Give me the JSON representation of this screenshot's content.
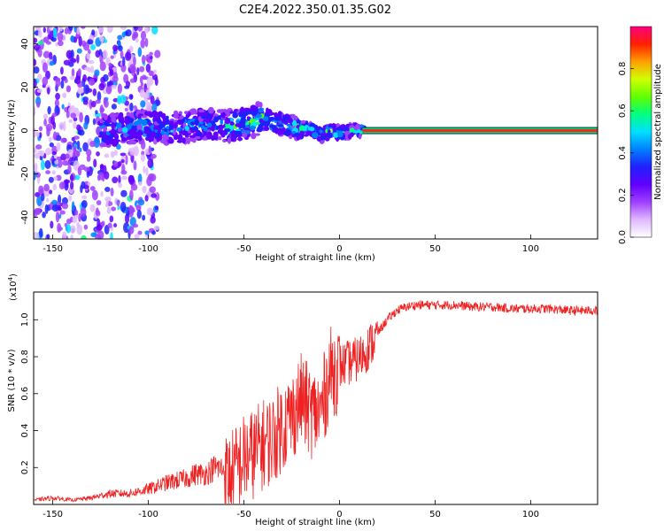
{
  "figure": {
    "title": "C2E4.2022.350.01.35.G02"
  },
  "chart_data": [
    {
      "type": "heatmap",
      "xlabel": "Height of straight line (km)",
      "ylabel": "Frequency (Hz)",
      "xlim": [
        -160,
        135
      ],
      "ylim": [
        -50,
        48
      ],
      "xticks": [
        -150,
        -100,
        -50,
        0,
        50,
        100
      ],
      "yticks": [
        -40,
        -20,
        0,
        20,
        40
      ],
      "colorbar": {
        "label": "Normalized spectral amplitude",
        "range": [
          0,
          1
        ],
        "ticks": [
          "0.0",
          "0.2",
          "0.4",
          "0.6",
          "0.8"
        ],
        "colormap": [
          "#ffffff",
          "#e0b8ff",
          "#a040ff",
          "#6000ff",
          "#2020ff",
          "#0080ff",
          "#00e0ff",
          "#00ff80",
          "#60ff00",
          "#d0ff00",
          "#ffa000",
          "#ff2000",
          "#ff0080"
        ]
      },
      "signal_trace": {
        "x": [
          -125,
          -110,
          -100,
          -90,
          -80,
          -70,
          -60,
          -50,
          -40,
          -35,
          -30,
          -25,
          -20,
          -15,
          -10,
          -5,
          0,
          5,
          10,
          20,
          50,
          100,
          135
        ],
        "y": [
          0,
          1,
          2,
          1,
          2,
          3,
          2,
          3,
          6,
          4,
          3,
          2,
          1,
          1,
          -2,
          0,
          -1,
          0,
          0,
          0,
          0,
          0,
          0
        ]
      },
      "grid": false,
      "legend": "colorbar right"
    },
    {
      "type": "line",
      "xlabel": "Height of straight line (km)",
      "ylabel": "SNR (10 * v/v)",
      "scale_label": "(x10",
      "scale_exponent": "4",
      "xlim": [
        -160,
        135
      ],
      "ylim": [
        0,
        1.15
      ],
      "xticks": [
        -150,
        -100,
        -50,
        0,
        50,
        100
      ],
      "yticks": [
        "0.2",
        "0.4",
        "0.6",
        "0.8",
        "1.0"
      ],
      "series": [
        {
          "color": "#ee2222",
          "x": [
            -160,
            -150,
            -140,
            -130,
            -120,
            -110,
            -100,
            -90,
            -80,
            -75,
            -70,
            -65,
            -60,
            -55,
            -50,
            -45,
            -40,
            -35,
            -30,
            -25,
            -20,
            -15,
            -10,
            -5,
            0,
            5,
            10,
            15,
            20,
            25,
            30,
            35,
            40,
            50,
            60,
            70,
            80,
            90,
            100,
            110,
            120,
            130,
            135
          ],
          "values": [
            0.02,
            0.03,
            0.02,
            0.03,
            0.05,
            0.05,
            0.07,
            0.1,
            0.12,
            0.14,
            0.14,
            0.17,
            0.16,
            0.2,
            0.27,
            0.3,
            0.35,
            0.38,
            0.45,
            0.5,
            0.6,
            0.52,
            0.52,
            0.74,
            0.76,
            0.78,
            0.8,
            0.86,
            0.93,
            1.0,
            1.05,
            1.07,
            1.08,
            1.08,
            1.08,
            1.07,
            1.07,
            1.06,
            1.06,
            1.06,
            1.05,
            1.05,
            1.05
          ]
        }
      ],
      "grid": false
    }
  ]
}
